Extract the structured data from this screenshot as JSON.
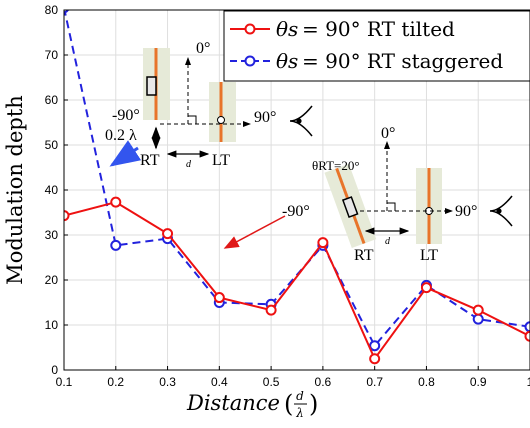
{
  "chart_data": {
    "type": "line",
    "xlabel": "Distance",
    "xlabel_frac_num": "d",
    "xlabel_frac_den": "λ",
    "ylabel": "Modulation depth",
    "xlim": [
      0.1,
      1.0
    ],
    "ylim": [
      0,
      80
    ],
    "x_ticks": [
      "0.1",
      "0.2",
      "0.3",
      "0.4",
      "0.5",
      "0.6",
      "0.7",
      "0.8",
      "0.9",
      "1"
    ],
    "y_ticks": [
      "0",
      "10",
      "20",
      "30",
      "40",
      "50",
      "60",
      "70",
      "80"
    ],
    "grid": true,
    "legend_position": "top-right",
    "series": [
      {
        "name": "= 90° RT tilted",
        "legend_symbol": "θs",
        "color": "#ee1111",
        "style": "solid",
        "x": [
          0.1,
          0.2,
          0.3,
          0.4,
          0.5,
          0.6,
          0.7,
          0.8,
          0.9,
          1.0
        ],
        "y": [
          34.3,
          37.3,
          30.3,
          16.1,
          13.3,
          28.3,
          2.5,
          18.3,
          13.3,
          7.5
        ]
      },
      {
        "name": "= 90° RT staggered",
        "legend_symbol": "θs",
        "color": "#2222dd",
        "style": "dashed",
        "x": [
          0.1,
          0.2,
          0.3,
          0.4,
          0.5,
          0.6,
          0.7,
          0.8,
          0.9,
          1.0
        ],
        "y": [
          80.5,
          27.7,
          29.2,
          15.0,
          14.6,
          27.7,
          5.4,
          18.8,
          11.3,
          9.6
        ]
      }
    ],
    "annotations": {
      "inset1": {
        "angle_left": "-90°",
        "angle_top": "0°",
        "angle_right": "90°",
        "separation": "0.2 λ",
        "rt_label": "RT",
        "lt_label": "LT",
        "d_label": "d"
      },
      "inset2": {
        "tilt_label": "θRT=20°",
        "angle_left": "-90°",
        "angle_top": "0°",
        "angle_right": "90°",
        "rt_label": "RT",
        "lt_label": "LT",
        "d_label": "d"
      }
    }
  }
}
